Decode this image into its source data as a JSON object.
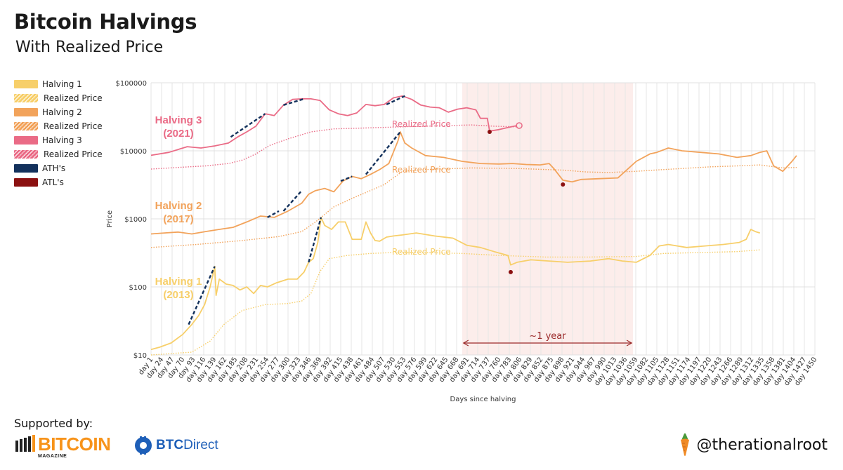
{
  "header": {
    "title": "Bitcoin Halvings",
    "subtitle": "With Realized Price"
  },
  "legend": [
    {
      "label": "Halving 1",
      "color": "#f7cf6a",
      "style": "solid"
    },
    {
      "label": "Realized Price",
      "color": "#f7cf6a",
      "style": "dotted"
    },
    {
      "label": "Halving 2",
      "color": "#f2a35b",
      "style": "solid"
    },
    {
      "label": "Realized Price",
      "color": "#f2a35b",
      "style": "dotted"
    },
    {
      "label": "Halving 3",
      "color": "#ea6b86",
      "style": "solid"
    },
    {
      "label": "Realized Price",
      "color": "#ea6b86",
      "style": "dotted"
    },
    {
      "label": "ATH's",
      "color": "#13315c",
      "style": "solid"
    },
    {
      "label": "ATL's",
      "color": "#8b1010",
      "style": "solid"
    }
  ],
  "chart_data": {
    "type": "line",
    "xlabel": "Days since halving",
    "ylabel": "Price",
    "yscale": "log",
    "ylim": [
      10,
      100000
    ],
    "xlim": [
      1,
      1450
    ],
    "y_ticks": [
      {
        "value": 10,
        "label": "$10"
      },
      {
        "value": 100,
        "label": "$100"
      },
      {
        "value": 1000,
        "label": "$1000"
      },
      {
        "value": 10000,
        "label": "$10000"
      },
      {
        "value": 100000,
        "label": "$100000"
      }
    ],
    "x_ticks": [
      "day 1",
      "day 24",
      "day 47",
      "day 70",
      "day 93",
      "day 116",
      "day 139",
      "day 162",
      "day 185",
      "day 208",
      "day 231",
      "day 254",
      "day 277",
      "day 300",
      "day 323",
      "day 346",
      "day 369",
      "day 392",
      "day 415",
      "day 438",
      "day 461",
      "day 484",
      "day 507",
      "day 530",
      "day 553",
      "day 576",
      "day 599",
      "day 622",
      "day 645",
      "day 668",
      "day 691",
      "day 714",
      "day 737",
      "day 760",
      "day 783",
      "day 806",
      "day 829",
      "day 852",
      "day 875",
      "day 898",
      "day 921",
      "day 944",
      "day 967",
      "day 990",
      "day 1013",
      "day 1036",
      "day 1059",
      "day 1082",
      "day 1105",
      "day 1128",
      "day 1151",
      "day 1174",
      "day 1197",
      "day 1220",
      "day 1243",
      "day 1266",
      "day 1289",
      "day 1312",
      "day 1335",
      "day 1358",
      "day 1381",
      "day 1404",
      "day 1427",
      "day 1450"
    ],
    "grid": true,
    "shaded_region": {
      "x": [
        680,
        1053
      ],
      "label": "~1 year",
      "color": "#fbe3e1"
    },
    "series": [
      {
        "name": "Halving 1",
        "label_lines": [
          "Halving 1",
          "(2013)"
        ],
        "color": "#f7cf6a",
        "x": [
          1,
          20,
          45,
          70,
          90,
          105,
          118,
          130,
          140,
          143,
          150,
          165,
          180,
          195,
          210,
          225,
          240,
          255,
          275,
          300,
          320,
          335,
          345,
          355,
          365,
          372,
          380,
          395,
          410,
          425,
          440,
          450,
          460,
          470,
          480,
          490,
          500,
          515,
          530,
          550,
          580,
          620,
          660,
          690,
          720,
          750,
          780,
          786,
          800,
          830,
          870,
          910,
          960,
          1000,
          1030,
          1060,
          1090,
          1110,
          1130,
          1170,
          1210,
          1250,
          1285,
          1300,
          1310,
          1320,
          1330
        ],
        "y": [
          12,
          13,
          15,
          20,
          28,
          38,
          55,
          100,
          200,
          75,
          130,
          110,
          105,
          90,
          100,
          80,
          105,
          100,
          115,
          130,
          130,
          165,
          230,
          260,
          450,
          1050,
          800,
          700,
          900,
          900,
          500,
          500,
          500,
          900,
          620,
          480,
          470,
          540,
          560,
          580,
          620,
          560,
          520,
          410,
          380,
          330,
          290,
          210,
          230,
          250,
          240,
          230,
          240,
          260,
          240,
          230,
          290,
          400,
          420,
          380,
          400,
          420,
          450,
          500,
          700,
          650,
          620
        ]
      },
      {
        "name": "Realized Price",
        "color": "#f7cf6a",
        "dotted": true,
        "x": [
          1,
          90,
          130,
          160,
          200,
          250,
          300,
          330,
          350,
          370,
          390,
          430,
          480,
          530,
          600,
          680,
          760,
          860,
          960,
          1060,
          1120,
          1200,
          1280,
          1330
        ],
        "y": [
          10,
          11,
          16,
          28,
          45,
          55,
          57,
          62,
          80,
          170,
          260,
          290,
          310,
          320,
          320,
          310,
          290,
          275,
          275,
          280,
          310,
          320,
          330,
          350
        ]
      },
      {
        "name": "Halving 2",
        "label_lines": [
          "Halving 2",
          "(2017)"
        ],
        "color": "#f2a35b",
        "x": [
          1,
          30,
          60,
          90,
          120,
          150,
          180,
          210,
          240,
          270,
          300,
          330,
          345,
          360,
          380,
          400,
          420,
          440,
          460,
          480,
          500,
          520,
          540,
          545,
          555,
          570,
          600,
          640,
          680,
          720,
          760,
          790,
          820,
          850,
          870,
          880,
          900,
          920,
          940,
          980,
          1020,
          1060,
          1090,
          1105,
          1130,
          1160,
          1200,
          1240,
          1280,
          1310,
          1330,
          1345,
          1360,
          1380,
          1400,
          1410
        ],
        "y": [
          600,
          620,
          640,
          600,
          650,
          700,
          750,
          900,
          1100,
          1050,
          1300,
          1700,
          2300,
          2600,
          2800,
          2500,
          3600,
          4200,
          3900,
          4500,
          5300,
          6500,
          14000,
          19000,
          13000,
          11000,
          8500,
          8000,
          7000,
          6500,
          6400,
          6500,
          6300,
          6200,
          6500,
          5500,
          3700,
          3500,
          3800,
          3900,
          4000,
          7000,
          9000,
          9500,
          11000,
          10000,
          9500,
          9000,
          8000,
          8500,
          9500,
          10000,
          6000,
          5000,
          7000,
          8500
        ]
      },
      {
        "name": "Realized Price",
        "color": "#f2a35b",
        "dotted": true,
        "x": [
          1,
          100,
          200,
          280,
          330,
          360,
          400,
          440,
          480,
          510,
          530,
          550,
          600,
          700,
          800,
          900,
          950,
          1000,
          1060,
          1100,
          1160,
          1220,
          1280,
          1330,
          1380,
          1410
        ],
        "y": [
          380,
          420,
          480,
          550,
          650,
          900,
          1500,
          2000,
          2600,
          3200,
          4000,
          5000,
          5300,
          5600,
          5500,
          5200,
          4900,
          4800,
          5000,
          5200,
          5500,
          5800,
          6000,
          6200,
          5600,
          5700
        ]
      },
      {
        "name": "Halving 3",
        "label_lines": [
          "Halving 3",
          "(2021)"
        ],
        "color": "#ea6b86",
        "x": [
          1,
          40,
          80,
          110,
          140,
          170,
          190,
          210,
          230,
          250,
          270,
          290,
          310,
          330,
          350,
          370,
          390,
          410,
          430,
          450,
          470,
          490,
          510,
          530,
          550,
          570,
          590,
          610,
          630,
          650,
          670,
          690,
          710,
          720,
          735,
          740,
          760,
          780,
          800
        ],
        "y": [
          8600,
          9500,
          11500,
          11000,
          11800,
          13000,
          16000,
          19000,
          23000,
          35000,
          33000,
          47000,
          57000,
          58000,
          58000,
          55000,
          40000,
          35000,
          33000,
          36000,
          48000,
          46000,
          48000,
          60000,
          64000,
          57000,
          47000,
          44000,
          43000,
          37000,
          41000,
          43000,
          40000,
          30000,
          30000,
          19500,
          20500,
          22000,
          23500
        ]
      },
      {
        "name": "Realized Price",
        "color": "#ea6b86",
        "dotted": true,
        "x": [
          1,
          60,
          120,
          170,
          200,
          230,
          260,
          300,
          350,
          400,
          450,
          500,
          550,
          600,
          650,
          700,
          750,
          800
        ],
        "y": [
          5400,
          5700,
          6000,
          6500,
          7300,
          9000,
          12000,
          15000,
          19000,
          21000,
          21500,
          22000,
          22500,
          23000,
          23500,
          24000,
          23000,
          22500
        ]
      }
    ],
    "series_annotations": [
      "Realized Price",
      "Realized Price",
      "Realized Price"
    ],
    "ath_segments": [
      {
        "x": [
          83,
          140
        ],
        "y": [
          28,
          200
        ]
      },
      {
        "x": [
          345,
          372
        ],
        "y": [
          230,
          1050
        ]
      },
      {
        "x": [
          255,
          280
        ],
        "y": [
          1050,
          1300
        ]
      },
      {
        "x": [
          290,
          330
        ],
        "y": [
          1300,
          2600
        ]
      },
      {
        "x": [
          415,
          440
        ],
        "y": [
          3600,
          4200
        ]
      },
      {
        "x": [
          470,
          545
        ],
        "y": [
          4500,
          19000
        ]
      },
      {
        "x": [
          175,
          250
        ],
        "y": [
          16000,
          35000
        ]
      },
      {
        "x": [
          290,
          335
        ],
        "y": [
          47000,
          58000
        ]
      },
      {
        "x": [
          515,
          555
        ],
        "y": [
          48000,
          64000
        ]
      }
    ],
    "atl_points": [
      {
        "x": 786,
        "y": 165
      },
      {
        "x": 900,
        "y": 3200
      },
      {
        "x": 740,
        "y": 19000
      }
    ]
  },
  "footer": {
    "supported_label": "Supported by:",
    "sponsor1_word": "BITCOIN",
    "sponsor1_sub": "MAGAZINE",
    "sponsor2_bold": "BTC",
    "sponsor2_rest": "Direct",
    "handle": "@therationalroot"
  }
}
